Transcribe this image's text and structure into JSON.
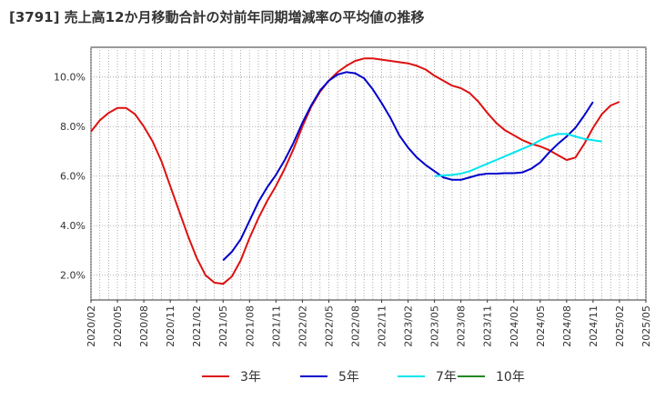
{
  "chart_data": {
    "type": "line",
    "title": "[3791]  売上高12か月移動合計の対前年同期増減率の平均値の推移",
    "xlabel": "",
    "ylabel": "",
    "ylim": [
      1.0,
      11.2
    ],
    "y_ticks": [
      2.0,
      4.0,
      6.0,
      8.0,
      10.0
    ],
    "y_tick_labels": [
      "2.0%",
      "4.0%",
      "6.0%",
      "8.0%",
      "10.0%"
    ],
    "x_ticks": [
      "2020/02",
      "2020/05",
      "2020/08",
      "2020/11",
      "2021/02",
      "2021/05",
      "2021/08",
      "2021/11",
      "2022/02",
      "2022/05",
      "2022/08",
      "2022/11",
      "2023/02",
      "2023/05",
      "2023/08",
      "2023/11",
      "2024/02",
      "2024/05",
      "2024/08",
      "2024/11",
      "2025/02",
      "2025/05"
    ],
    "grid": true,
    "legend_position": "bottom",
    "series": [
      {
        "name": "3年",
        "color": "#dd1111",
        "points": [
          [
            "2020/02",
            7.8
          ],
          [
            "2020/03",
            8.25
          ],
          [
            "2020/04",
            8.55
          ],
          [
            "2020/05",
            8.75
          ],
          [
            "2020/06",
            8.75
          ],
          [
            "2020/07",
            8.5
          ],
          [
            "2020/08",
            8.0
          ],
          [
            "2020/09",
            7.4
          ],
          [
            "2020/10",
            6.6
          ],
          [
            "2020/11",
            5.6
          ],
          [
            "2020/12",
            4.6
          ],
          [
            "2021/01",
            3.6
          ],
          [
            "2021/02",
            2.7
          ],
          [
            "2021/03",
            2.0
          ],
          [
            "2021/04",
            1.7
          ],
          [
            "2021/05",
            1.65
          ],
          [
            "2021/06",
            1.95
          ],
          [
            "2021/07",
            2.6
          ],
          [
            "2021/08",
            3.5
          ],
          [
            "2021/09",
            4.3
          ],
          [
            "2021/10",
            5.0
          ],
          [
            "2021/11",
            5.6
          ],
          [
            "2021/12",
            6.3
          ],
          [
            "2022/01",
            7.1
          ],
          [
            "2022/02",
            8.0
          ],
          [
            "2022/03",
            8.8
          ],
          [
            "2022/04",
            9.4
          ],
          [
            "2022/05",
            9.85
          ],
          [
            "2022/06",
            10.2
          ],
          [
            "2022/07",
            10.45
          ],
          [
            "2022/08",
            10.65
          ],
          [
            "2022/09",
            10.75
          ],
          [
            "2022/10",
            10.75
          ],
          [
            "2022/11",
            10.7
          ],
          [
            "2022/12",
            10.65
          ],
          [
            "2023/01",
            10.6
          ],
          [
            "2023/02",
            10.55
          ],
          [
            "2023/03",
            10.45
          ],
          [
            "2023/04",
            10.3
          ],
          [
            "2023/05",
            10.05
          ],
          [
            "2023/06",
            9.85
          ],
          [
            "2023/07",
            9.65
          ],
          [
            "2023/08",
            9.55
          ],
          [
            "2023/09",
            9.35
          ],
          [
            "2023/10",
            9.0
          ],
          [
            "2023/11",
            8.55
          ],
          [
            "2023/12",
            8.15
          ],
          [
            "2024/01",
            7.85
          ],
          [
            "2024/02",
            7.65
          ],
          [
            "2024/03",
            7.45
          ],
          [
            "2024/04",
            7.3
          ],
          [
            "2024/05",
            7.2
          ],
          [
            "2024/06",
            7.05
          ],
          [
            "2024/07",
            6.85
          ],
          [
            "2024/08",
            6.65
          ],
          [
            "2024/09",
            6.75
          ],
          [
            "2024/10",
            7.3
          ],
          [
            "2024/11",
            7.95
          ],
          [
            "2024/12",
            8.5
          ],
          [
            "2025/01",
            8.85
          ],
          [
            "2025/02",
            9.0
          ]
        ]
      },
      {
        "name": "5年",
        "color": "#0000cc",
        "points": [
          [
            "2021/05",
            2.6
          ],
          [
            "2021/06",
            2.95
          ],
          [
            "2021/07",
            3.45
          ],
          [
            "2021/08",
            4.2
          ],
          [
            "2021/09",
            4.95
          ],
          [
            "2021/10",
            5.55
          ],
          [
            "2021/11",
            6.05
          ],
          [
            "2021/12",
            6.65
          ],
          [
            "2022/01",
            7.35
          ],
          [
            "2022/02",
            8.15
          ],
          [
            "2022/03",
            8.85
          ],
          [
            "2022/04",
            9.45
          ],
          [
            "2022/05",
            9.85
          ],
          [
            "2022/06",
            10.1
          ],
          [
            "2022/07",
            10.2
          ],
          [
            "2022/08",
            10.15
          ],
          [
            "2022/09",
            9.95
          ],
          [
            "2022/10",
            9.5
          ],
          [
            "2022/11",
            8.95
          ],
          [
            "2022/12",
            8.35
          ],
          [
            "2023/01",
            7.65
          ],
          [
            "2023/02",
            7.15
          ],
          [
            "2023/03",
            6.75
          ],
          [
            "2023/04",
            6.45
          ],
          [
            "2023/05",
            6.2
          ],
          [
            "2023/06",
            5.95
          ],
          [
            "2023/07",
            5.85
          ],
          [
            "2023/08",
            5.85
          ],
          [
            "2023/09",
            5.95
          ],
          [
            "2023/10",
            6.05
          ],
          [
            "2023/11",
            6.1
          ],
          [
            "2023/12",
            6.1
          ],
          [
            "2024/01",
            6.12
          ],
          [
            "2024/02",
            6.12
          ],
          [
            "2024/03",
            6.15
          ],
          [
            "2024/04",
            6.3
          ],
          [
            "2024/05",
            6.55
          ],
          [
            "2024/06",
            6.95
          ],
          [
            "2024/07",
            7.3
          ],
          [
            "2024/08",
            7.6
          ],
          [
            "2024/09",
            7.95
          ],
          [
            "2024/10",
            8.45
          ],
          [
            "2024/11",
            9.0
          ]
        ]
      },
      {
        "name": "7年",
        "color": "#00e5ee",
        "points": [
          [
            "2023/05",
            6.0
          ],
          [
            "2023/06",
            6.03
          ],
          [
            "2023/07",
            6.05
          ],
          [
            "2023/08",
            6.1
          ],
          [
            "2023/09",
            6.2
          ],
          [
            "2023/10",
            6.35
          ],
          [
            "2023/11",
            6.5
          ],
          [
            "2023/12",
            6.65
          ],
          [
            "2024/01",
            6.8
          ],
          [
            "2024/02",
            6.95
          ],
          [
            "2024/03",
            7.1
          ],
          [
            "2024/04",
            7.25
          ],
          [
            "2024/05",
            7.45
          ],
          [
            "2024/06",
            7.6
          ],
          [
            "2024/07",
            7.7
          ],
          [
            "2024/08",
            7.7
          ],
          [
            "2024/09",
            7.6
          ],
          [
            "2024/10",
            7.5
          ],
          [
            "2024/11",
            7.45
          ],
          [
            "2024/12",
            7.4
          ]
        ]
      },
      {
        "name": "10年",
        "color": "#228822",
        "points": []
      }
    ]
  }
}
